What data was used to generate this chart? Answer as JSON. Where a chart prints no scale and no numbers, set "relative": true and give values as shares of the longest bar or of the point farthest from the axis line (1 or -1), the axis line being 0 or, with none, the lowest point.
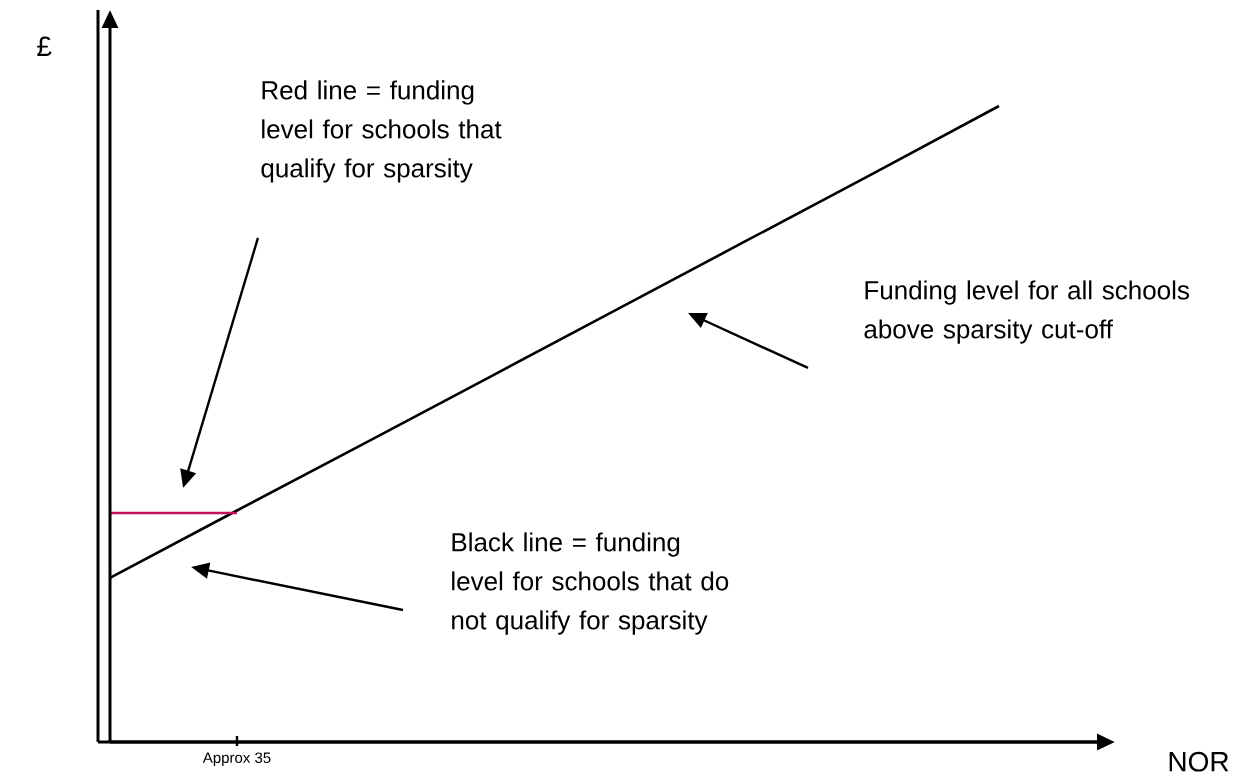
{
  "chart_data": {
    "type": "line",
    "relative": true,
    "xlabel": "NOR",
    "ylabel": "£",
    "categories": [
      null,
      null,
      null,
      null,
      null,
      null,
      null,
      null
    ],
    "marker": "none",
    "line_style": "solid",
    "series": [
      {
        "color": "#000000",
        "values": [
          0.258,
          0.364,
          0.469,
          0.575,
          0.681,
          0.787,
          0.893,
          1
        ]
      },
      {
        "color": "#c0135a",
        "values": [
          0.36,
          0.36,
          null,
          null,
          null,
          null,
          null,
          null
        ]
      }
    ],
    "annotations": [
      "Red line = funding level for schools that qualify for sparsity",
      "Funding level for all schools above sparsity cut-off",
      "Black line = funding level for schools that do not qualify for sparsity",
      "Approx 35"
    ]
  }
}
